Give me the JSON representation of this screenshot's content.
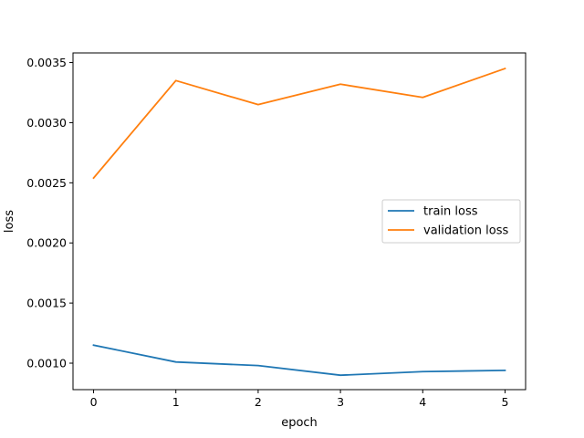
{
  "chart_data": {
    "type": "line",
    "title": "",
    "xlabel": "epoch",
    "ylabel": "loss",
    "x": [
      0,
      1,
      2,
      3,
      4,
      5
    ],
    "xlim": [
      -0.25,
      5.25
    ],
    "ylim": [
      0.00078,
      0.00358
    ],
    "xticks": [
      0,
      1,
      2,
      3,
      4,
      5
    ],
    "xtick_labels": [
      "0",
      "1",
      "2",
      "3",
      "4",
      "5"
    ],
    "yticks": [
      0.001,
      0.0015,
      0.002,
      0.0025,
      0.003,
      0.0035
    ],
    "ytick_labels": [
      "0.0010",
      "0.0015",
      "0.0020",
      "0.0025",
      "0.0030",
      "0.0035"
    ],
    "grid": false,
    "legend_position": "center-right",
    "series": [
      {
        "name": "train loss",
        "color": "#1f77b4",
        "values": [
          0.00115,
          0.00101,
          0.00098,
          0.0009,
          0.00093,
          0.00094
        ]
      },
      {
        "name": "validation loss",
        "color": "#ff7f0e",
        "values": [
          0.00254,
          0.00335,
          0.00315,
          0.00332,
          0.00321,
          0.00345
        ]
      }
    ]
  }
}
